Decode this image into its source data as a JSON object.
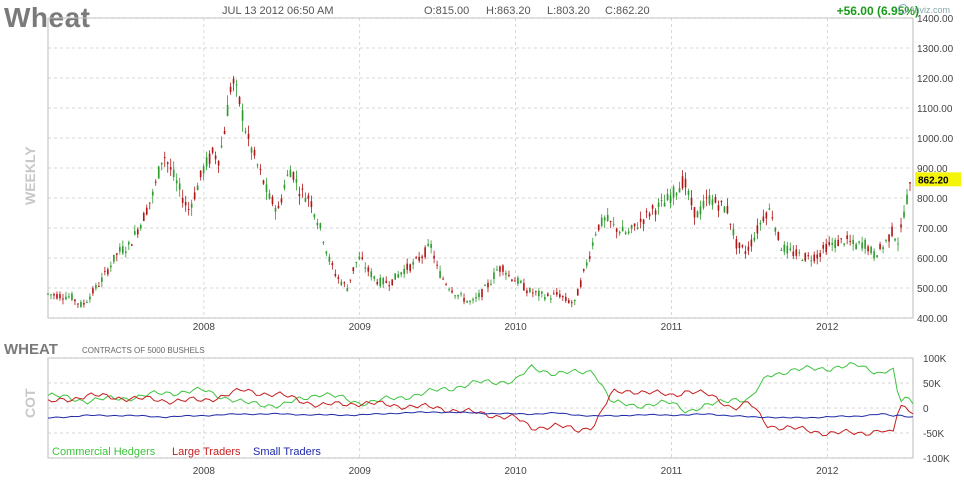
{
  "header": {
    "ticker": "Wheat",
    "datetime": "JUL 13 2012 06:50 AM",
    "open": "O:815.00",
    "high": "H:863.20",
    "low": "L:803.20",
    "close": "C:862.20",
    "change": "+56.00 (6.95%)",
    "logo": "finviz.com",
    "side_label": "WEEKLY"
  },
  "cot": {
    "title": "WHEAT",
    "subtitle": "CONTRACTS OF 5000 BUSHELS",
    "side_label": "COT"
  },
  "colors": {
    "up": "#2e9b2e",
    "down": "#b01818",
    "commercial": "#3ec43e",
    "large": "#c62020",
    "small": "#1e2aa8",
    "price_badge": "#f5f50a",
    "grid": "#c8c8c8"
  },
  "chart_data": [
    {
      "type": "candlestick",
      "interval": "weekly",
      "title": "Wheat",
      "ylim": [
        400,
        1400
      ],
      "y_ticks": [
        "400.00",
        "500.00",
        "600.00",
        "700.00",
        "800.00",
        "900.00",
        "1000.00",
        "1100.00",
        "1200.00",
        "1300.00",
        "1400.00"
      ],
      "x_ticks": [
        "2008",
        "2009",
        "2010",
        "2011",
        "2012"
      ],
      "x_range": [
        2007.0,
        2012.55
      ],
      "last_price_label": "862.20",
      "grid": true,
      "price_path": [
        [
          2007.0,
          480
        ],
        [
          2007.15,
          470
        ],
        [
          2007.22,
          440
        ],
        [
          2007.3,
          495
        ],
        [
          2007.35,
          530
        ],
        [
          2007.45,
          620
        ],
        [
          2007.52,
          640
        ],
        [
          2007.6,
          720
        ],
        [
          2007.68,
          820
        ],
        [
          2007.74,
          950
        ],
        [
          2007.8,
          880
        ],
        [
          2007.85,
          820
        ],
        [
          2007.9,
          760
        ],
        [
          2007.94,
          810
        ],
        [
          2008.0,
          900
        ],
        [
          2008.06,
          950
        ],
        [
          2008.1,
          930
        ],
        [
          2008.14,
          1050
        ],
        [
          2008.18,
          1200
        ],
        [
          2008.21,
          1150
        ],
        [
          2008.24,
          1100
        ],
        [
          2008.28,
          1000
        ],
        [
          2008.35,
          900
        ],
        [
          2008.42,
          800
        ],
        [
          2008.48,
          760
        ],
        [
          2008.52,
          850
        ],
        [
          2008.56,
          900
        ],
        [
          2008.62,
          820
        ],
        [
          2008.68,
          800
        ],
        [
          2008.72,
          740
        ],
        [
          2008.76,
          680
        ],
        [
          2008.8,
          600
        ],
        [
          2008.85,
          540
        ],
        [
          2008.92,
          500
        ],
        [
          2008.97,
          580
        ],
        [
          2009.0,
          600
        ],
        [
          2009.05,
          560
        ],
        [
          2009.12,
          520
        ],
        [
          2009.2,
          520
        ],
        [
          2009.28,
          560
        ],
        [
          2009.35,
          580
        ],
        [
          2009.42,
          620
        ],
        [
          2009.46,
          640
        ],
        [
          2009.5,
          560
        ],
        [
          2009.55,
          520
        ],
        [
          2009.62,
          480
        ],
        [
          2009.68,
          460
        ],
        [
          2009.72,
          450
        ],
        [
          2009.78,
          480
        ],
        [
          2009.84,
          520
        ],
        [
          2009.88,
          560
        ],
        [
          2009.92,
          570
        ],
        [
          2009.96,
          540
        ],
        [
          2010.02,
          520
        ],
        [
          2010.08,
          490
        ],
        [
          2010.14,
          480
        ],
        [
          2010.22,
          470
        ],
        [
          2010.28,
          480
        ],
        [
          2010.32,
          460
        ],
        [
          2010.38,
          450
        ],
        [
          2010.42,
          520
        ],
        [
          2010.48,
          620
        ],
        [
          2010.52,
          700
        ],
        [
          2010.58,
          730
        ],
        [
          2010.64,
          700
        ],
        [
          2010.72,
          680
        ],
        [
          2010.8,
          720
        ],
        [
          2010.88,
          760
        ],
        [
          2010.95,
          780
        ],
        [
          2011.02,
          820
        ],
        [
          2011.08,
          860
        ],
        [
          2011.12,
          790
        ],
        [
          2011.16,
          740
        ],
        [
          2011.2,
          770
        ],
        [
          2011.24,
          800
        ],
        [
          2011.3,
          780
        ],
        [
          2011.36,
          760
        ],
        [
          2011.42,
          640
        ],
        [
          2011.48,
          620
        ],
        [
          2011.54,
          680
        ],
        [
          2011.6,
          750
        ],
        [
          2011.64,
          760
        ],
        [
          2011.7,
          640
        ],
        [
          2011.76,
          620
        ],
        [
          2011.82,
          610
        ],
        [
          2011.88,
          600
        ],
        [
          2011.94,
          610
        ],
        [
          2012.0,
          640
        ],
        [
          2012.06,
          650
        ],
        [
          2012.12,
          660
        ],
        [
          2012.18,
          640
        ],
        [
          2012.24,
          650
        ],
        [
          2012.3,
          610
        ],
        [
          2012.36,
          640
        ],
        [
          2012.42,
          690
        ],
        [
          2012.46,
          650
        ],
        [
          2012.5,
          780
        ],
        [
          2012.53,
          830
        ],
        [
          2012.55,
          862
        ]
      ]
    },
    {
      "type": "line",
      "title": "WHEAT",
      "subtitle": "CONTRACTS OF 5000 BUSHELS",
      "ylim": [
        -100000,
        100000
      ],
      "y_ticks": [
        "100K",
        "50K",
        "0",
        "-50K",
        "-100K"
      ],
      "x_ticks": [
        "2008",
        "2009",
        "2010",
        "2011",
        "2012"
      ],
      "x_range": [
        2007.0,
        2012.55
      ],
      "legend": "bottom-left",
      "x": [
        2007.0,
        2007.25,
        2007.5,
        2007.75,
        2008.0,
        2008.25,
        2008.5,
        2008.75,
        2009.0,
        2009.25,
        2009.5,
        2009.75,
        2010.0,
        2010.1,
        2010.25,
        2010.4,
        2010.5,
        2010.62,
        2010.75,
        2011.0,
        2011.1,
        2011.25,
        2011.4,
        2011.5,
        2011.62,
        2011.75,
        2012.0,
        2012.2,
        2012.35,
        2012.42,
        2012.46,
        2012.5,
        2012.55
      ],
      "series": [
        {
          "name": "Commercial Hedgers",
          "values": [
            25000,
            15000,
            20000,
            30000,
            35000,
            10000,
            5000,
            30000,
            10000,
            20000,
            35000,
            50000,
            55000,
            80000,
            70000,
            70000,
            75000,
            10000,
            5000,
            10000,
            -5000,
            5000,
            20000,
            15000,
            65000,
            75000,
            80000,
            85000,
            70000,
            80000,
            10000,
            20000,
            10000
          ]
        },
        {
          "name": "Large Traders",
          "values": [
            10000,
            25000,
            20000,
            15000,
            15000,
            35000,
            25000,
            5000,
            10000,
            5000,
            0,
            -10000,
            -20000,
            -40000,
            -35000,
            -45000,
            -35000,
            30000,
            35000,
            25000,
            35000,
            25000,
            0,
            10000,
            -35000,
            -40000,
            -50000,
            -50000,
            -45000,
            -55000,
            5000,
            0,
            -5000
          ]
        },
        {
          "name": "Small Traders",
          "values": [
            -20000,
            -15000,
            -15000,
            -18000,
            -15000,
            -12000,
            -12000,
            -14000,
            -14000,
            -10000,
            -8000,
            -10000,
            -12000,
            -12000,
            -10000,
            -14000,
            -16000,
            -16000,
            -14000,
            -14000,
            -14000,
            -12000,
            -16000,
            -18000,
            -18000,
            -20000,
            -18000,
            -16000,
            -12000,
            -16000,
            -14000,
            -16000,
            -18000
          ]
        }
      ]
    }
  ]
}
